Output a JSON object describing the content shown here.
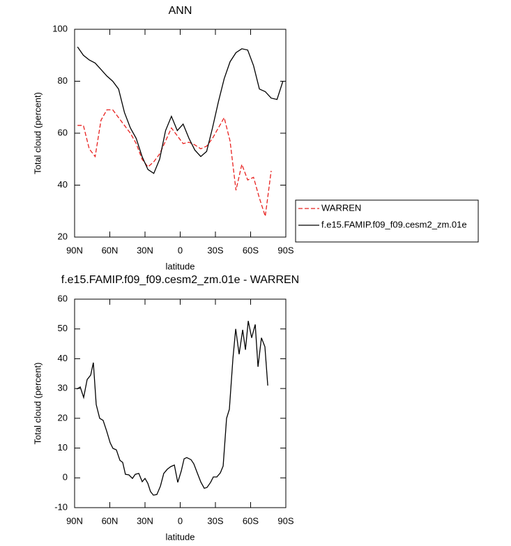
{
  "chart_data": [
    {
      "type": "line",
      "title": "ANN",
      "x_label": "latitude",
      "y_label": "Total cloud (percent)",
      "xlim": [
        90,
        -90
      ],
      "xticks": [
        {
          "value": 90,
          "label": "90N"
        },
        {
          "value": 60,
          "label": "60N"
        },
        {
          "value": 30,
          "label": "30N"
        },
        0,
        {
          "value": -30,
          "label": "30S"
        },
        {
          "value": -60,
          "label": "60S"
        },
        {
          "value": -90,
          "label": "90S"
        }
      ],
      "ylim": [
        20,
        100
      ],
      "yticks": [
        20,
        40,
        60,
        80,
        100
      ],
      "legend": "right",
      "series": [
        {
          "name": "WARREN",
          "color": "#e8201e",
          "dash": true,
          "x": [
            87.5,
            82.5,
            77.5,
            72.5,
            67.5,
            62.5,
            57.5,
            52.5,
            47.5,
            42.5,
            37.5,
            32.5,
            27.5,
            22.5,
            17.5,
            12.5,
            7.5,
            2.5,
            -2.5,
            -7.5,
            -12.5,
            -17.5,
            -22.5,
            -27.5,
            -32.5,
            -37.5,
            -42.5,
            -47.5,
            -52.5,
            -57.5,
            -62.5,
            -67.5,
            -72.5,
            -77.5
          ],
          "values": [
            63,
            63,
            54,
            51,
            65,
            69,
            69,
            66,
            63,
            60,
            56,
            50,
            47,
            49,
            52,
            57,
            62,
            59,
            56,
            56.5,
            55.5,
            54,
            55,
            58,
            62,
            66,
            57,
            38,
            48,
            42,
            43,
            35,
            28,
            45.5
          ]
        },
        {
          "name": "f.e15.FAMIP.f09_f09.cesm2_zm.01e",
          "color": "#000000",
          "dash": false,
          "x": [
            87.5,
            82.5,
            77.5,
            72.5,
            67.5,
            62.5,
            57.5,
            52.5,
            47.5,
            42.5,
            37.5,
            32.5,
            27.5,
            22.5,
            17.5,
            12.5,
            7.5,
            2.5,
            -2.5,
            -7.5,
            -12.5,
            -17.5,
            -22.5,
            -27.5,
            -32.5,
            -37.5,
            -42.5,
            -47.5,
            -52.5,
            -57.5,
            -62.5,
            -67.5,
            -72.5,
            -77.5,
            -82.5,
            -87.5
          ],
          "values": [
            93.2,
            90,
            88.2,
            87,
            84.5,
            82,
            80,
            77,
            68,
            62,
            58,
            51,
            46,
            44.5,
            50,
            61,
            66.5,
            61,
            63.5,
            58,
            53.5,
            51,
            53,
            62,
            72,
            81,
            87.5,
            91,
            92.5,
            92,
            86,
            77,
            76,
            73.5,
            73,
            80
          ]
        }
      ]
    },
    {
      "type": "line",
      "title": "f.e15.FAMIP.f09_f09.cesm2_zm.01e - WARREN",
      "x_label": "latitude",
      "y_label": "Total cloud (percent)",
      "xlim": [
        90,
        -90
      ],
      "xticks": [
        {
          "value": 90,
          "label": "90N"
        },
        {
          "value": 60,
          "label": "60N"
        },
        {
          "value": 30,
          "label": "30N"
        },
        0,
        {
          "value": -30,
          "label": "30S"
        },
        {
          "value": -60,
          "label": "60S"
        },
        {
          "value": -90,
          "label": "90S"
        }
      ],
      "ylim": [
        -10,
        60
      ],
      "yticks": [
        -10,
        0,
        10,
        20,
        30,
        40,
        50,
        60
      ],
      "series": [
        {
          "color": "#000000",
          "dash": false,
          "x": [
            88.2,
            85.2,
            82.3,
            79.3,
            76.3,
            74,
            71.6,
            68.6,
            65.7,
            62.7,
            59.7,
            57.3,
            54.4,
            51.4,
            49,
            46.7,
            43.7,
            40.7,
            38.3,
            35.3,
            32.4,
            30,
            27.6,
            25.3,
            22.9,
            19.9,
            16.9,
            14,
            11,
            8,
            5,
            2.1,
            -0.9,
            -3.3,
            -5.6,
            -9.2,
            -11.6,
            -14.6,
            -17.6,
            -20.5,
            -22.9,
            -25.9,
            -28.2,
            -31.2,
            -34.2,
            -36.6,
            -39.5,
            -41.9,
            -44.9,
            -47.3,
            -50.2,
            -53.2,
            -55.6,
            -58,
            -60.9,
            -63.9,
            -66.3,
            -69.2,
            -72.2,
            -74.6
          ],
          "values": [
            29.8,
            30.5,
            27,
            33,
            34.5,
            38.7,
            24.6,
            20,
            19.3,
            15.7,
            11.8,
            9.9,
            9.4,
            5.9,
            5.2,
            1.2,
            1,
            -0.2,
            1.2,
            1.5,
            -1.3,
            -0.2,
            -1.8,
            -4.6,
            -5.8,
            -5.6,
            -2.8,
            1.5,
            2.9,
            3.8,
            4.3,
            -1.5,
            2.3,
            6.4,
            6.8,
            6.1,
            4.7,
            1.6,
            -1.4,
            -3.5,
            -3.2,
            -1.5,
            0.3,
            0.3,
            1.7,
            4,
            20,
            23,
            40,
            50,
            41.5,
            49.7,
            43,
            52.7,
            47,
            51.5,
            37.3,
            47,
            44,
            31
          ]
        }
      ]
    }
  ]
}
